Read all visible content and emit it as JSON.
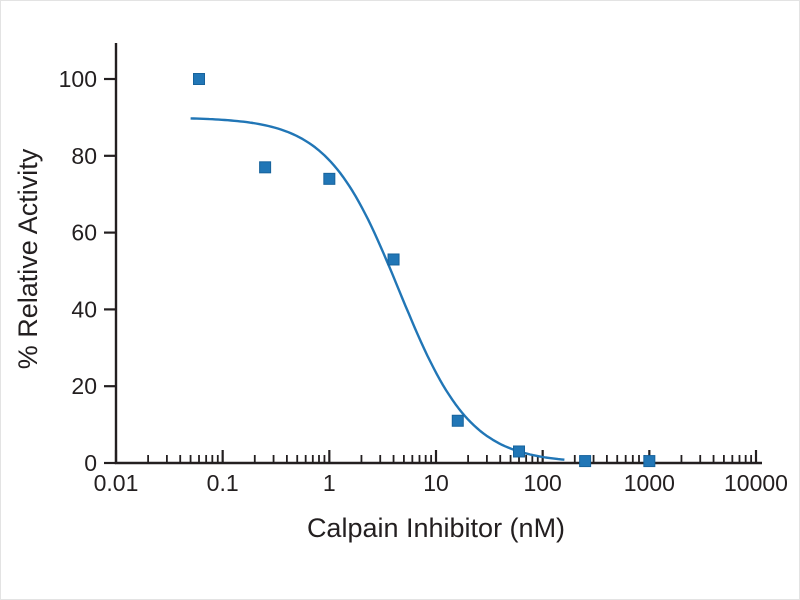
{
  "chart_data": {
    "type": "scatter",
    "title": "",
    "xlabel": "Calpain Inhibitor (nM)",
    "ylabel": "% Relative Activity",
    "x_scale": "log",
    "xlim": [
      0.01,
      10000
    ],
    "ylim": [
      0,
      100
    ],
    "x_ticks": [
      {
        "value": 0.01,
        "label": "0.01"
      },
      {
        "value": 0.1,
        "label": "0.1"
      },
      {
        "value": 1,
        "label": "1"
      },
      {
        "value": 10,
        "label": "10"
      },
      {
        "value": 100,
        "label": "100"
      },
      {
        "value": 1000,
        "label": "1000"
      },
      {
        "value": 10000,
        "label": "10000"
      }
    ],
    "x_minor_ticks_per_decade": [
      2,
      3,
      4,
      5,
      6,
      7,
      8,
      9
    ],
    "y_ticks": [
      {
        "value": 0,
        "label": "0"
      },
      {
        "value": 20,
        "label": "20"
      },
      {
        "value": 40,
        "label": "40"
      },
      {
        "value": 60,
        "label": "60"
      },
      {
        "value": 80,
        "label": "80"
      },
      {
        "value": 100,
        "label": "100"
      }
    ],
    "points": [
      {
        "x": 0.06,
        "y": 100
      },
      {
        "x": 0.25,
        "y": 77
      },
      {
        "x": 1,
        "y": 74
      },
      {
        "x": 4,
        "y": 53
      },
      {
        "x": 16,
        "y": 11
      },
      {
        "x": 60,
        "y": 3
      },
      {
        "x": 250,
        "y": 0.5
      },
      {
        "x": 1000,
        "y": 0.5
      }
    ],
    "fit_curve": {
      "model": "four_parameter_logistic",
      "top": 90,
      "bottom": 0,
      "ic50": 4.5,
      "hill": 1.3,
      "x_start": 0.05,
      "x_end": 160
    },
    "legend": null,
    "grid": false,
    "colors": {
      "series": "#2176b6",
      "axis": "#231f20"
    },
    "marker": {
      "shape": "square",
      "size": 11
    }
  }
}
